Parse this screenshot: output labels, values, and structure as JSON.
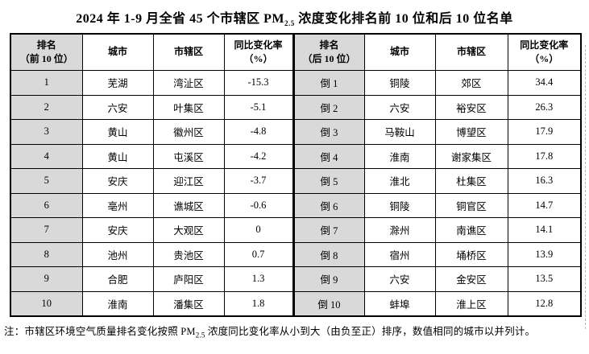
{
  "title": {
    "prefix": "2024 年 1-9 月全省 45 个市辖区 PM",
    "sub": "2.5",
    "suffix": " 浓度变化排名前 10 位和后 10 位名单"
  },
  "table": {
    "left_header": {
      "rank_line1": "排名",
      "rank_line2": "（前 10 位）",
      "city": "城市",
      "district": "市辖区",
      "rate_line1": "同比变化率",
      "rate_line2": "（%）"
    },
    "right_header": {
      "rank_line1": "排名",
      "rank_line2": "（后 10 位）",
      "city": "城市",
      "district": "市辖区",
      "rate_line1": "同比变化率",
      "rate_line2": "（%）"
    },
    "rows": [
      {
        "l_rank": "1",
        "l_city": "芜湖",
        "l_district": "湾沚区",
        "l_rate": "-15.3",
        "r_rank": "倒 1",
        "r_city": "铜陵",
        "r_district": "郊区",
        "r_rate": "34.4"
      },
      {
        "l_rank": "2",
        "l_city": "六安",
        "l_district": "叶集区",
        "l_rate": "-5.1",
        "r_rank": "倒 2",
        "r_city": "六安",
        "r_district": "裕安区",
        "r_rate": "26.3"
      },
      {
        "l_rank": "3",
        "l_city": "黄山",
        "l_district": "徽州区",
        "l_rate": "-4.8",
        "r_rank": "倒 3",
        "r_city": "马鞍山",
        "r_district": "博望区",
        "r_rate": "17.9"
      },
      {
        "l_rank": "4",
        "l_city": "黄山",
        "l_district": "屯溪区",
        "l_rate": "-4.2",
        "r_rank": "倒 4",
        "r_city": "淮南",
        "r_district": "谢家集区",
        "r_rate": "17.8"
      },
      {
        "l_rank": "5",
        "l_city": "安庆",
        "l_district": "迎江区",
        "l_rate": "-3.7",
        "r_rank": "倒 5",
        "r_city": "淮北",
        "r_district": "杜集区",
        "r_rate": "16.3"
      },
      {
        "l_rank": "6",
        "l_city": "亳州",
        "l_district": "谯城区",
        "l_rate": "-0.6",
        "r_rank": "倒 6",
        "r_city": "铜陵",
        "r_district": "铜官区",
        "r_rate": "14.7"
      },
      {
        "l_rank": "7",
        "l_city": "安庆",
        "l_district": "大观区",
        "l_rate": "0",
        "r_rank": "倒 7",
        "r_city": "滁州",
        "r_district": "南谯区",
        "r_rate": "14.1"
      },
      {
        "l_rank": "8",
        "l_city": "池州",
        "l_district": "贵池区",
        "l_rate": "0.7",
        "r_rank": "倒 8",
        "r_city": "宿州",
        "r_district": "埇桥区",
        "r_rate": "13.9"
      },
      {
        "l_rank": "9",
        "l_city": "合肥",
        "l_district": "庐阳区",
        "l_rate": "1.3",
        "r_rank": "倒 9",
        "r_city": "六安",
        "r_district": "金安区",
        "r_rate": "13.5"
      },
      {
        "l_rank": "10",
        "l_city": "淮南",
        "l_district": "潘集区",
        "l_rate": "1.8",
        "r_rank": "倒 10",
        "r_city": "蚌埠",
        "r_district": "淮上区",
        "r_rate": "12.8"
      }
    ]
  },
  "note": {
    "prefix": "注：市辖区环境空气质量排名变化按照 PM",
    "sub": "2.5",
    "suffix": " 浓度同比变化率从小到大（由负至正）排序，数值相同的城市以并列计。"
  },
  "colors": {
    "rank_column_bg": "#d9d9d9",
    "table_border": "#000000",
    "text": "#000000",
    "page_bg": "#ffffff",
    "page_boundary_dash": "#b8b8b8"
  }
}
